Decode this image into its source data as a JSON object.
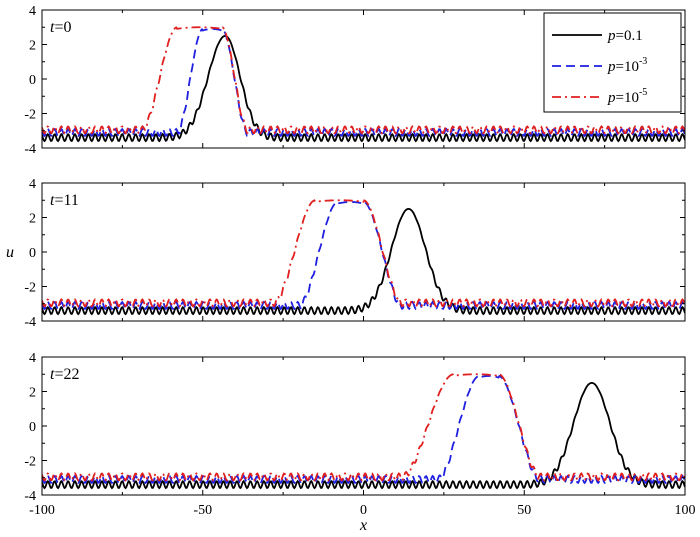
{
  "chart_data": {
    "type": "line",
    "xlabel": "x",
    "ylabel": "u",
    "xlim": [
      -100,
      100
    ],
    "ylim": [
      -4,
      4
    ],
    "xticks": [
      -100,
      -50,
      0,
      50,
      100
    ],
    "xtick_labels": [
      "-100",
      "-50",
      "0",
      "50",
      "100"
    ],
    "yticks": [
      -4,
      -2,
      0,
      2,
      4
    ],
    "ytick_labels": [
      "-4",
      "-2",
      "0",
      "2",
      "4"
    ],
    "grid": false,
    "legend": {
      "placement": "top-right",
      "entries": [
        {
          "var": "p",
          "eq": "=0.1",
          "exp": "",
          "color": "#000000",
          "dash": "solid"
        },
        {
          "var": "p",
          "eq": "=10",
          "exp": "-3",
          "color": "#1f1fe0",
          "dash": "dashed"
        },
        {
          "var": "p",
          "eq": "=10",
          "exp": "-5",
          "color": "#e01f1f",
          "dash": "dashdot"
        }
      ]
    },
    "panels": [
      {
        "t_var": "t",
        "t_eq": "=0",
        "series": [
          {
            "name_var": "p",
            "name": "=0.1",
            "color": "#000000",
            "dash": "solid",
            "plateau": -3.4,
            "peak": 2.5,
            "center": -43,
            "left_width": 7.5,
            "right_width": 6.5,
            "wave_amp": 0.2,
            "wave_period": 2.1,
            "flat_top": false
          },
          {
            "name_var": "p",
            "name": "=10^-3",
            "color": "#1f1fe0",
            "dash": "dashed",
            "plateau": -3.1,
            "peak": 2.9,
            "left_rise_start": -58,
            "left_rise_end": -50,
            "right_fall_start": -44,
            "right_fall_end": -36,
            "wave_amp": 0.2,
            "wave_period": 2.1,
            "flat_top": true
          },
          {
            "name_var": "p",
            "name": "=10^-5",
            "color": "#e01f1f",
            "dash": "dashdot",
            "plateau": -2.95,
            "peak": 3.0,
            "left_rise_start": -69,
            "left_rise_end": -58,
            "right_fall_start": -44,
            "right_fall_end": -36,
            "wave_amp": 0.2,
            "wave_period": 2.1,
            "flat_top": true
          }
        ]
      },
      {
        "t_var": "t",
        "t_eq": "=11",
        "series": [
          {
            "name_var": "p",
            "name": "=0.1",
            "color": "#000000",
            "dash": "solid",
            "plateau": -3.4,
            "peak": 2.5,
            "center": 14,
            "left_width": 7.5,
            "right_width": 7.5,
            "wave_amp": 0.2,
            "wave_period": 2.1,
            "flat_top": false
          },
          {
            "name_var": "p",
            "name": "=10^-3",
            "color": "#1f1fe0",
            "dash": "dashed",
            "plateau": -3.1,
            "peak": 2.9,
            "left_rise_start": -20,
            "left_rise_end": -8,
            "right_fall_start": 0,
            "right_fall_end": 12,
            "wave_amp": 0.2,
            "wave_period": 2.1,
            "flat_top": true
          },
          {
            "name_var": "p",
            "name": "=10^-5",
            "color": "#e01f1f",
            "dash": "dashdot",
            "plateau": -2.95,
            "peak": 3.0,
            "left_rise_start": -28,
            "left_rise_end": -15,
            "right_fall_start": 0,
            "right_fall_end": 12,
            "wave_amp": 0.2,
            "wave_period": 2.1,
            "flat_top": true
          }
        ]
      },
      {
        "t_var": "t",
        "t_eq": "=22",
        "series": [
          {
            "name_var": "p",
            "name": "=0.1",
            "color": "#000000",
            "dash": "solid",
            "plateau": -3.4,
            "peak": 2.5,
            "center": 71,
            "left_width": 8,
            "right_width": 8,
            "wave_amp": 0.2,
            "wave_period": 2.1,
            "flat_top": false
          },
          {
            "name_var": "p",
            "name": "=10^-3",
            "color": "#1f1fe0",
            "dash": "dashed",
            "plateau": -3.1,
            "peak": 2.9,
            "left_rise_start": 23,
            "left_rise_end": 36,
            "right_fall_start": 42,
            "right_fall_end": 55,
            "wave_amp": 0.2,
            "wave_period": 2.1,
            "flat_top": true
          },
          {
            "name_var": "p",
            "name": "=10^-5",
            "color": "#e01f1f",
            "dash": "dashdot",
            "plateau": -2.95,
            "peak": 3.0,
            "left_rise_start": 12,
            "left_rise_end": 28,
            "right_fall_start": 42,
            "right_fall_end": 55,
            "wave_amp": 0.2,
            "wave_period": 2.1,
            "flat_top": true
          }
        ]
      }
    ]
  }
}
